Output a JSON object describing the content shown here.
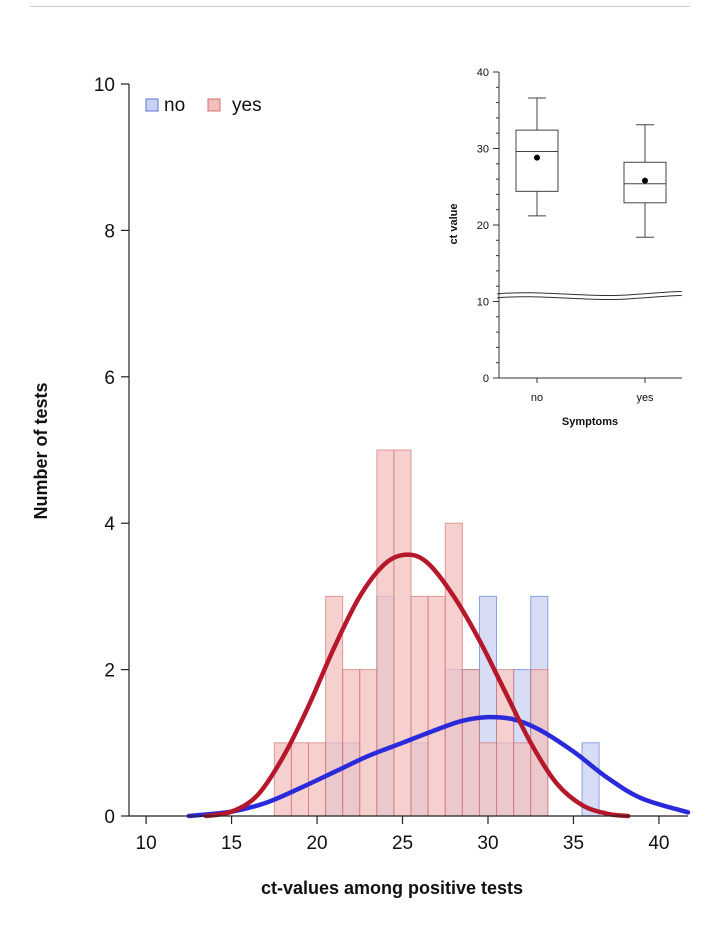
{
  "chart_data": [
    {
      "type": "bar",
      "subtype": "overlapping-histogram-with-density",
      "xlabel": "ct-values among positive tests",
      "ylabel": "Number of tests",
      "xlim": [
        9,
        41.7
      ],
      "ylim": [
        0,
        10
      ],
      "xticks": [
        10,
        15,
        20,
        25,
        30,
        35,
        40
      ],
      "yticks": [
        0,
        2,
        4,
        6,
        8,
        10
      ],
      "bin_width": 1,
      "legend": {
        "position": "top-left"
      },
      "series": [
        {
          "name": "no",
          "color": "#5b74d6",
          "fill": "#c8d1f2",
          "bins": [
            {
              "x0": 20.5,
              "count": 1
            },
            {
              "x0": 21.5,
              "count": 1
            },
            {
              "x0": 23.5,
              "count": 3
            },
            {
              "x0": 25.5,
              "count": 1
            },
            {
              "x0": 27.5,
              "count": 2
            },
            {
              "x0": 28.5,
              "count": 2
            },
            {
              "x0": 29.5,
              "count": 3
            },
            {
              "x0": 30.5,
              "count": 1
            },
            {
              "x0": 31.5,
              "count": 2
            },
            {
              "x0": 32.5,
              "count": 3
            },
            {
              "x0": 35.5,
              "count": 1
            }
          ],
          "density_curve": {
            "color": "#2a2adb",
            "x": [
              12.5,
              15,
              17,
              19,
              21,
              23,
              25,
              27,
              28.5,
              30,
              31.5,
              33,
              35,
              37,
              39,
              41.7
            ],
            "y": [
              0.0,
              0.06,
              0.18,
              0.38,
              0.6,
              0.82,
              1.0,
              1.18,
              1.3,
              1.35,
              1.32,
              1.18,
              0.88,
              0.52,
              0.24,
              0.05
            ]
          }
        },
        {
          "name": "yes",
          "color": "#d0706e",
          "fill": "#f1c0bd",
          "bins": [
            {
              "x0": 17.5,
              "count": 1
            },
            {
              "x0": 18.5,
              "count": 1
            },
            {
              "x0": 19.5,
              "count": 1
            },
            {
              "x0": 20.5,
              "count": 3
            },
            {
              "x0": 21.5,
              "count": 2
            },
            {
              "x0": 22.5,
              "count": 2
            },
            {
              "x0": 23.5,
              "count": 5
            },
            {
              "x0": 24.5,
              "count": 5
            },
            {
              "x0": 25.5,
              "count": 3
            },
            {
              "x0": 26.5,
              "count": 3
            },
            {
              "x0": 27.5,
              "count": 4
            },
            {
              "x0": 28.5,
              "count": 2
            },
            {
              "x0": 29.5,
              "count": 1
            },
            {
              "x0": 30.5,
              "count": 2
            },
            {
              "x0": 31.5,
              "count": 1
            },
            {
              "x0": 32.5,
              "count": 2
            }
          ],
          "density_curve": {
            "color": "#b5182a",
            "x": [
              13.5,
              15,
              16.5,
              18,
              19.5,
              21,
              22.5,
              24,
              25.3,
              26.5,
              28,
              29.5,
              31,
              32.5,
              34,
              35.5,
              37,
              38.2
            ],
            "y": [
              0.0,
              0.06,
              0.28,
              0.8,
              1.5,
              2.3,
              3.0,
              3.45,
              3.57,
              3.45,
              3.0,
              2.4,
              1.7,
              1.0,
              0.45,
              0.15,
              0.03,
              0.0
            ]
          }
        }
      ]
    },
    {
      "type": "boxplot",
      "title": "",
      "xlabel": "Symptoms",
      "ylabel": "ct value",
      "categories": [
        "no",
        "yes"
      ],
      "ylim": [
        0,
        40
      ],
      "yticks": [
        0,
        10,
        20,
        30,
        40
      ],
      "axis_break_at": 11,
      "boxes": [
        {
          "name": "no",
          "whisker_low": 21.2,
          "q1": 24.4,
          "median": 29.6,
          "q3": 32.4,
          "whisker_high": 36.6,
          "mean": 28.8
        },
        {
          "name": "yes",
          "whisker_low": 18.4,
          "q1": 22.9,
          "median": 25.4,
          "q3": 28.2,
          "whisker_high": 33.1,
          "mean": 25.8
        }
      ]
    }
  ]
}
